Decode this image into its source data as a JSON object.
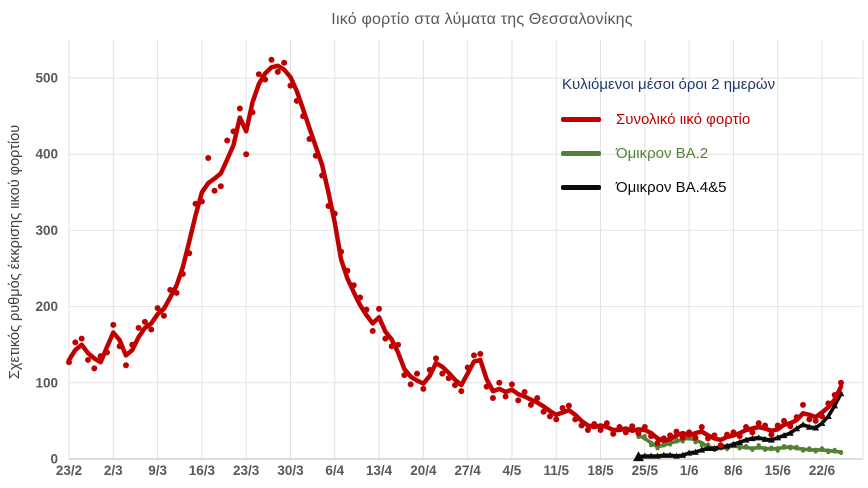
{
  "chart_data": {
    "type": "line",
    "title": "Ιικό φορτίο στα λύματα της Θεσσαλονίκης",
    "ylabel": "Σχετικός ρυθμός έκκρισης ιικού φορτίου",
    "legend_title": "Κυλιόμενοι μέσοι όροι 2 ημερών",
    "legend_title_color": "#1F3864",
    "legend_position": "top-right-inside",
    "grid": true,
    "ylim": [
      0,
      500
    ],
    "y_ticks": [
      0,
      100,
      200,
      300,
      400,
      500
    ],
    "x_tick_labels": [
      "23/2",
      "2/3",
      "9/3",
      "16/3",
      "23/3",
      "30/3",
      "6/4",
      "13/4",
      "20/4",
      "27/4",
      "4/5",
      "11/5",
      "18/5",
      "25/5",
      "1/6",
      "8/6",
      "15/6",
      "22/6"
    ],
    "x_tick_interval_days": 7,
    "n_points": 123,
    "colors": {
      "grid": "#E2E2E2",
      "axis": "#C8C8C8",
      "tick_label": "#595959",
      "title": "#595959",
      "axis_title": "#3F3F3F"
    },
    "series": [
      {
        "name": "total-viral-load",
        "label": "Συνολικό ιικό φορτίο",
        "color": "#C00000",
        "start_index": 0,
        "line_width": 4.5,
        "marker": "none",
        "values": [
          130,
          143,
          150,
          139,
          132,
          127,
          147,
          166,
          156,
          136,
          143,
          160,
          172,
          178,
          190,
          197,
          212,
          228,
          252,
          285,
          320,
          350,
          362,
          368,
          375,
          393,
          412,
          448,
          430,
          468,
          492,
          506,
          514,
          516,
          511,
          501,
          483,
          459,
          434,
          410,
          386,
          350,
          310,
          262,
          237,
          219,
          202,
          189,
          178,
          186,
          167,
          157,
          140,
          118,
          108,
          103,
          99,
          109,
          126,
          121,
          113,
          104,
          97,
          112,
          128,
          130,
          105,
          89,
          92,
          88,
          91,
          85,
          82,
          78,
          74,
          69,
          63,
          58,
          61,
          64,
          58,
          50,
          44,
          42,
          44,
          42,
          38,
          38,
          40,
          37,
          39,
          38,
          34,
          27,
          24,
          26,
          31,
          34,
          31,
          34,
          36,
          31,
          27,
          25,
          29,
          31,
          34,
          38,
          40,
          42,
          40,
          37,
          39,
          45,
          47,
          51,
          60,
          58,
          55,
          61,
          68,
          78,
          95
        ],
        "dots": [
          127,
          153,
          158,
          130,
          119,
          135,
          140,
          176,
          148,
          123,
          150,
          172,
          180,
          170,
          198,
          188,
          222,
          218,
          243,
          270,
          335,
          338,
          395,
          352,
          358,
          418,
          430,
          460,
          400,
          455,
          505,
          498,
          524,
          508,
          520,
          490,
          470,
          450,
          420,
          398,
          372,
          332,
          322,
          272,
          247,
          228,
          212,
          196,
          168,
          197,
          158,
          148,
          150,
          110,
          98,
          112,
          92,
          117,
          132,
          112,
          106,
          97,
          89,
          120,
          136,
          138,
          95,
          80,
          100,
          82,
          98,
          77,
          88,
          71,
          80,
          62,
          56,
          52,
          67,
          70,
          52,
          44,
          38,
          46,
          38,
          47,
          33,
          42,
          35,
          43,
          34,
          42,
          30,
          21,
          27,
          31,
          36,
          28,
          35,
          28,
          42,
          27,
          31,
          18,
          32,
          35,
          30,
          42,
          35,
          47,
          44,
          32,
          44,
          50,
          43,
          55,
          71,
          52,
          50,
          56,
          73,
          84,
          100
        ]
      },
      {
        "name": "omicron-ba2",
        "label": "Όμικρον ΒΑ.2",
        "color": "#538135",
        "start_index": 90,
        "line_width": 3.6,
        "marker": "circle",
        "values": [
          31,
          27,
          21,
          16,
          18,
          21,
          23,
          26,
          27,
          25,
          21,
          16,
          14,
          14,
          16,
          17,
          16,
          15,
          14,
          15,
          14,
          13,
          14,
          15,
          16,
          14,
          13,
          12,
          12,
          12,
          11,
          10,
          9
        ],
        "dots": [
          29,
          30,
          18,
          14,
          21,
          19,
          26,
          23,
          30,
          22,
          18,
          19,
          12,
          17,
          13,
          20,
          14,
          17,
          12,
          18,
          12,
          15,
          11,
          17,
          14,
          16,
          11,
          14,
          10,
          14,
          9,
          12,
          8
        ]
      },
      {
        "name": "omicron-ba45",
        "label": "Όμικρον ΒΑ.4&5",
        "color": "#0B0B0B",
        "start_index": 90,
        "line_width": 3.6,
        "marker": "triangle",
        "values": [
          3,
          4,
          4,
          4,
          5,
          5,
          4,
          5,
          8,
          9,
          12,
          14,
          14,
          16,
          17,
          19,
          22,
          25,
          27,
          28,
          26,
          25,
          28,
          31,
          34,
          40,
          45,
          42,
          41,
          47,
          56,
          70,
          86
        ],
        "dots": []
      }
    ]
  }
}
